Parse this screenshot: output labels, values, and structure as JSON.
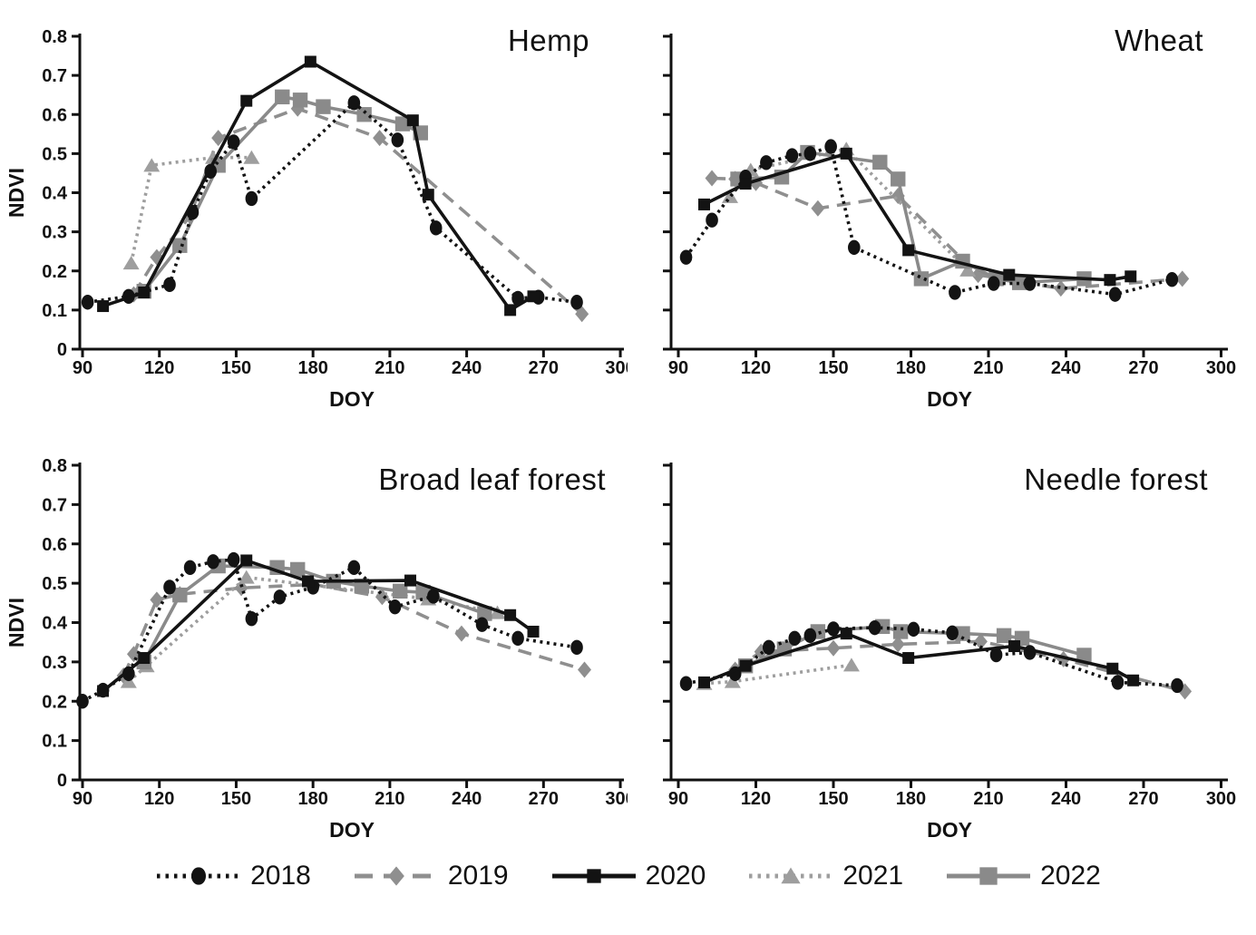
{
  "figure": {
    "background": "#ffffff"
  },
  "axes": {
    "xlabel": "DOY",
    "ylabel": "NDVI",
    "x_ticks": [
      90,
      120,
      150,
      180,
      210,
      240,
      270,
      300
    ],
    "y_tick_labels": [
      "0",
      "0.1",
      "0.2",
      "0.3",
      "0.4",
      "0.5",
      "0.6",
      "0.7",
      "0.8"
    ],
    "x_range": [
      88,
      302
    ],
    "y_range": [
      0,
      0.8
    ],
    "grid": "off"
  },
  "series_styles": [
    {
      "name": "2018",
      "color": "#131313",
      "line": "dotted",
      "marker": "circle"
    },
    {
      "name": "2019",
      "color": "#8f8f8f",
      "line": "dashed",
      "marker": "diamond"
    },
    {
      "name": "2020",
      "color": "#131313",
      "line": "solid",
      "marker": "square"
    },
    {
      "name": "2021",
      "color": "#9e9e9e",
      "line": "dotted",
      "marker": "triangle"
    },
    {
      "name": "2022",
      "color": "#8a8a8a",
      "line": "solid",
      "marker": "big-square"
    }
  ],
  "legend": {
    "position": "bottom-center",
    "items": [
      "2018",
      "2019",
      "2020",
      "2021",
      "2022"
    ]
  },
  "chart_data": [
    {
      "type": "line",
      "title": "Hemp",
      "y_axis_labels": true,
      "series": [
        {
          "name": "2018",
          "points": [
            [
              92,
              0.12
            ],
            [
              108,
              0.135
            ],
            [
              124,
              0.165
            ],
            [
              133,
              0.35
            ],
            [
              140,
              0.455
            ],
            [
              149,
              0.53
            ],
            [
              156,
              0.385
            ],
            [
              196,
              0.63
            ],
            [
              213,
              0.535
            ],
            [
              228,
              0.31
            ],
            [
              260,
              0.13
            ],
            [
              268,
              0.133
            ],
            [
              283,
              0.12
            ]
          ]
        },
        {
          "name": "2019",
          "points": [
            [
              110,
              0.14
            ],
            [
              119,
              0.235
            ],
            [
              132,
              0.34
            ],
            [
              143,
              0.54
            ],
            [
              174,
              0.615
            ],
            [
              206,
              0.54
            ],
            [
              285,
              0.09
            ]
          ]
        },
        {
          "name": "2020",
          "points": [
            [
              98,
              0.11
            ],
            [
              114,
              0.145
            ],
            [
              154,
              0.635
            ],
            [
              179,
              0.735
            ],
            [
              219,
              0.585
            ],
            [
              225,
              0.395
            ],
            [
              257,
              0.1
            ],
            [
              266,
              0.135
            ]
          ]
        },
        {
          "name": "2021",
          "points": [
            [
              109,
              0.22
            ],
            [
              117,
              0.47
            ],
            [
              141,
              0.49
            ],
            [
              156,
              0.49
            ]
          ]
        },
        {
          "name": "2022",
          "points": [
            [
              114,
              0.148
            ],
            [
              128,
              0.265
            ],
            [
              143,
              0.47
            ],
            [
              168,
              0.645
            ],
            [
              175,
              0.637
            ],
            [
              184,
              0.62
            ],
            [
              200,
              0.6
            ],
            [
              215,
              0.576
            ],
            [
              222,
              0.553
            ]
          ]
        }
      ]
    },
    {
      "type": "line",
      "title": "Wheat",
      "y_axis_labels": false,
      "series": [
        {
          "name": "2018",
          "points": [
            [
              93,
              0.235
            ],
            [
              103,
              0.33
            ],
            [
              116,
              0.44
            ],
            [
              124,
              0.477
            ],
            [
              134,
              0.495
            ],
            [
              141,
              0.5
            ],
            [
              149,
              0.518
            ],
            [
              158,
              0.26
            ],
            [
              197,
              0.145
            ],
            [
              212,
              0.168
            ],
            [
              226,
              0.168
            ],
            [
              259,
              0.14
            ],
            [
              281,
              0.178
            ]
          ]
        },
        {
          "name": "2019",
          "points": [
            [
              103,
              0.437
            ],
            [
              112,
              0.435
            ],
            [
              120,
              0.425
            ],
            [
              144,
              0.36
            ],
            [
              175,
              0.392
            ],
            [
              206,
              0.19
            ],
            [
              238,
              0.155
            ],
            [
              285,
              0.18
            ]
          ]
        },
        {
          "name": "2020",
          "points": [
            [
              100,
              0.37
            ],
            [
              116,
              0.423
            ],
            [
              155,
              0.5
            ],
            [
              179,
              0.253
            ],
            [
              218,
              0.19
            ],
            [
              257,
              0.177
            ],
            [
              265,
              0.186
            ]
          ]
        },
        {
          "name": "2021",
          "points": [
            [
              110,
              0.39
            ],
            [
              118,
              0.458
            ],
            [
              155,
              0.512
            ],
            [
              202,
              0.202
            ]
          ]
        },
        {
          "name": "2022",
          "points": [
            [
              113,
              0.435
            ],
            [
              130,
              0.44
            ],
            [
              140,
              0.503
            ],
            [
              168,
              0.478
            ],
            [
              175,
              0.435
            ],
            [
              184,
              0.18
            ],
            [
              200,
              0.225
            ],
            [
              213,
              0.18
            ],
            [
              222,
              0.17
            ],
            [
              247,
              0.18
            ]
          ]
        }
      ]
    },
    {
      "type": "line",
      "title": "Broad leaf forest",
      "y_axis_labels": true,
      "series": [
        {
          "name": "2018",
          "points": [
            [
              90,
              0.2
            ],
            [
              98,
              0.228
            ],
            [
              108,
              0.27
            ],
            [
              124,
              0.49
            ],
            [
              132,
              0.54
            ],
            [
              141,
              0.555
            ],
            [
              149,
              0.56
            ],
            [
              156,
              0.41
            ],
            [
              167,
              0.465
            ],
            [
              180,
              0.49
            ],
            [
              196,
              0.54
            ],
            [
              212,
              0.44
            ],
            [
              227,
              0.467
            ],
            [
              246,
              0.395
            ],
            [
              260,
              0.36
            ],
            [
              283,
              0.337
            ]
          ]
        },
        {
          "name": "2019",
          "points": [
            [
              106,
              0.265
            ],
            [
              110,
              0.32
            ],
            [
              119,
              0.458
            ],
            [
              128,
              0.472
            ],
            [
              152,
              0.488
            ],
            [
              180,
              0.497
            ],
            [
              207,
              0.465
            ],
            [
              238,
              0.372
            ],
            [
              286,
              0.28
            ]
          ]
        },
        {
          "name": "2020",
          "points": [
            [
              98,
              0.226
            ],
            [
              114,
              0.31
            ],
            [
              154,
              0.558
            ],
            [
              178,
              0.505
            ],
            [
              218,
              0.507
            ],
            [
              257,
              0.419
            ],
            [
              266,
              0.377
            ]
          ]
        },
        {
          "name": "2021",
          "points": [
            [
              108,
              0.25
            ],
            [
              115,
              0.29
            ],
            [
              154,
              0.515
            ],
            [
              225,
              0.46
            ],
            [
              252,
              0.425
            ]
          ]
        },
        {
          "name": "2022",
          "points": [
            [
              114,
              0.3
            ],
            [
              128,
              0.47
            ],
            [
              143,
              0.544
            ],
            [
              166,
              0.54
            ],
            [
              174,
              0.535
            ],
            [
              188,
              0.505
            ],
            [
              199,
              0.493
            ],
            [
              214,
              0.48
            ],
            [
              223,
              0.477
            ],
            [
              247,
              0.423
            ]
          ]
        }
      ]
    },
    {
      "type": "line",
      "title": "Needle forest",
      "y_axis_labels": false,
      "series": [
        {
          "name": "2018",
          "points": [
            [
              93,
              0.245
            ],
            [
              112,
              0.27
            ],
            [
              125,
              0.337
            ],
            [
              135,
              0.36
            ],
            [
              141,
              0.367
            ],
            [
              150,
              0.384
            ],
            [
              166,
              0.387
            ],
            [
              181,
              0.383
            ],
            [
              196,
              0.374
            ],
            [
              213,
              0.318
            ],
            [
              226,
              0.324
            ],
            [
              260,
              0.248
            ],
            [
              283,
              0.24
            ]
          ]
        },
        {
          "name": "2019",
          "points": [
            [
              112,
              0.28
            ],
            [
              122,
              0.326
            ],
            [
              150,
              0.335
            ],
            [
              175,
              0.345
            ],
            [
              207,
              0.352
            ],
            [
              239,
              0.307
            ],
            [
              286,
              0.225
            ]
          ]
        },
        {
          "name": "2020",
          "points": [
            [
              100,
              0.248
            ],
            [
              116,
              0.29
            ],
            [
              155,
              0.372
            ],
            [
              179,
              0.31
            ],
            [
              220,
              0.34
            ],
            [
              258,
              0.283
            ],
            [
              266,
              0.253
            ]
          ]
        },
        {
          "name": "2021",
          "points": [
            [
              100,
              0.245
            ],
            [
              111,
              0.25
            ],
            [
              157,
              0.292
            ]
          ]
        },
        {
          "name": "2022",
          "points": [
            [
              116,
              0.29
            ],
            [
              131,
              0.333
            ],
            [
              144,
              0.377
            ],
            [
              169,
              0.39
            ],
            [
              176,
              0.377
            ],
            [
              200,
              0.372
            ],
            [
              216,
              0.367
            ],
            [
              223,
              0.36
            ],
            [
              247,
              0.317
            ]
          ]
        }
      ]
    }
  ]
}
